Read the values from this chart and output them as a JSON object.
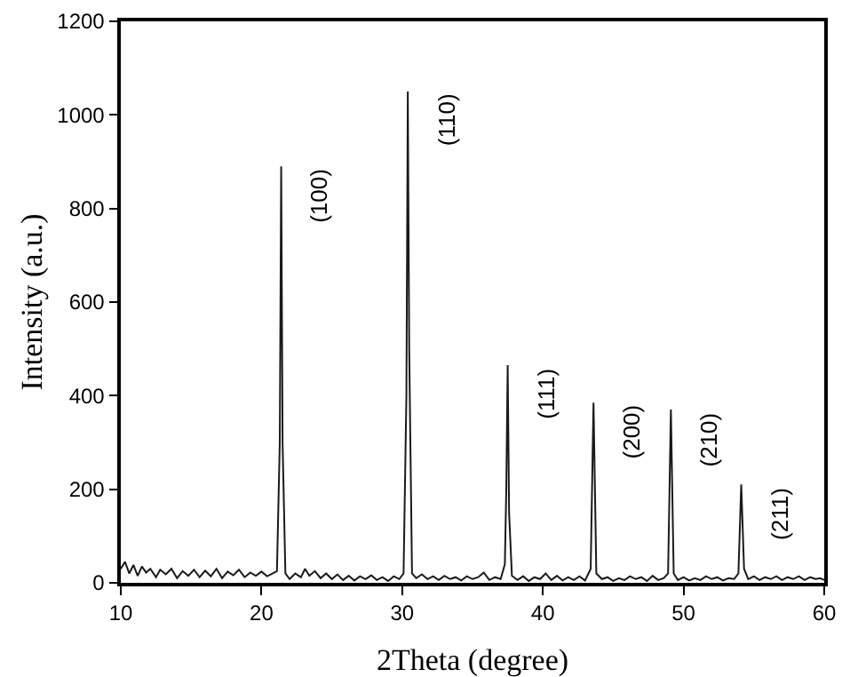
{
  "chart_data": {
    "type": "line",
    "xlabel": "2Theta (degree)",
    "ylabel": "Intensity (a.u.)",
    "xlim": [
      10,
      60
    ],
    "xticks": [
      10,
      20,
      30,
      40,
      50,
      60
    ],
    "ylim": [
      0,
      1200
    ],
    "yticks": [
      0,
      200,
      400,
      600,
      800,
      1000,
      1200
    ],
    "grid": false,
    "marker": "none",
    "line_style": "solid",
    "series": [
      {
        "color": "#1a1a1a",
        "x": [
          10,
          10.3,
          10.6,
          10.9,
          11.2,
          11.5,
          11.8,
          12.1,
          12.5,
          12.8,
          13.2,
          13.6,
          14,
          14.4,
          14.8,
          15.2,
          15.6,
          16,
          16.4,
          16.8,
          17.2,
          17.6,
          18,
          18.4,
          18.8,
          19.2,
          19.6,
          20,
          20.4,
          20.8,
          21.1,
          21.3,
          21.4,
          21.5,
          21.7,
          22,
          22.4,
          22.8,
          23.1,
          23.4,
          23.8,
          24.2,
          24.6,
          25,
          25.4,
          25.8,
          26.2,
          26.6,
          27,
          27.4,
          27.8,
          28.2,
          28.6,
          29,
          29.4,
          29.8,
          30.1,
          30.3,
          30.4,
          30.5,
          30.7,
          31,
          31.4,
          31.8,
          32.2,
          32.6,
          33,
          33.4,
          33.8,
          34.2,
          34.6,
          35,
          35.4,
          35.8,
          36.2,
          36.6,
          37,
          37.3,
          37.4,
          37.5,
          37.6,
          37.8,
          38.2,
          38.6,
          39,
          39.4,
          39.8,
          40.2,
          40.6,
          41,
          41.4,
          41.8,
          42.2,
          42.6,
          43,
          43.4,
          43.6,
          43.8,
          44.2,
          44.6,
          45,
          45.4,
          45.8,
          46.2,
          46.6,
          47,
          47.4,
          47.8,
          48.2,
          48.6,
          48.9,
          49.1,
          49.3,
          49.6,
          50,
          50.4,
          50.8,
          51.2,
          51.6,
          52,
          52.4,
          52.8,
          53.2,
          53.6,
          53.9,
          54.1,
          54.3,
          54.6,
          55,
          55.4,
          55.8,
          56.2,
          56.6,
          57,
          57.4,
          57.8,
          58.2,
          58.6,
          59,
          59.4,
          59.7,
          60
        ],
        "values": [
          30,
          45,
          20,
          38,
          15,
          35,
          22,
          30,
          12,
          28,
          18,
          30,
          10,
          25,
          15,
          28,
          12,
          26,
          14,
          30,
          10,
          24,
          16,
          28,
          12,
          22,
          15,
          24,
          14,
          20,
          25,
          300,
          890,
          300,
          20,
          8,
          20,
          12,
          30,
          15,
          25,
          10,
          20,
          8,
          18,
          6,
          15,
          5,
          14,
          8,
          16,
          6,
          12,
          4,
          14,
          8,
          20,
          400,
          1050,
          500,
          20,
          10,
          18,
          8,
          14,
          6,
          15,
          8,
          12,
          5,
          14,
          8,
          12,
          22,
          6,
          12,
          8,
          40,
          200,
          465,
          150,
          15,
          6,
          14,
          4,
          12,
          8,
          20,
          6,
          15,
          5,
          12,
          6,
          14,
          5,
          30,
          385,
          20,
          8,
          12,
          4,
          10,
          6,
          14,
          8,
          12,
          4,
          15,
          6,
          10,
          20,
          370,
          20,
          6,
          12,
          5,
          10,
          6,
          14,
          8,
          12,
          5,
          10,
          8,
          20,
          210,
          30,
          8,
          14,
          6,
          12,
          8,
          14,
          6,
          12,
          8,
          14,
          6,
          12,
          8,
          10,
          6
        ]
      }
    ],
    "annotations": [
      {
        "text": "(100)",
        "x": 21.4,
        "y": 890
      },
      {
        "text": "(110)",
        "x": 30.4,
        "y": 1050
      },
      {
        "text": "(111)",
        "x": 37.5,
        "y": 465
      },
      {
        "text": "(200)",
        "x": 43.6,
        "y": 385
      },
      {
        "text": "(210)",
        "x": 49.1,
        "y": 370
      },
      {
        "text": "(211)",
        "x": 54.1,
        "y": 210
      }
    ]
  }
}
